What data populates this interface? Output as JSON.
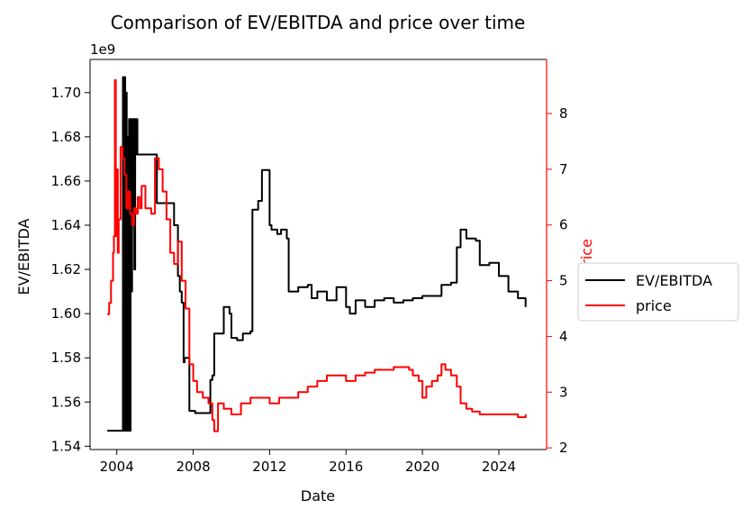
{
  "chart_data": {
    "type": "line",
    "title": "Comparison of EV/EBITDA and price over time",
    "xlabel": "Date",
    "ylabel_left": "EV/EBITDA",
    "ylabel_right": "price",
    "left_axis_offset_label": "1e9",
    "xlim": [
      2002.6,
      2026.5
    ],
    "ylim_left": [
      1.5385,
      1.715
    ],
    "ylim_right": [
      1.97,
      8.97
    ],
    "x_ticks": [
      2004,
      2008,
      2012,
      2016,
      2020,
      2024
    ],
    "x_tick_labels": [
      "2004",
      "2008",
      "2012",
      "2016",
      "2020",
      "2024"
    ],
    "y_left_ticks": [
      1.54,
      1.56,
      1.58,
      1.6,
      1.62,
      1.64,
      1.66,
      1.68,
      1.7
    ],
    "y_left_tick_labels": [
      "1.54",
      "1.56",
      "1.58",
      "1.60",
      "1.62",
      "1.64",
      "1.66",
      "1.68",
      "1.70"
    ],
    "y_right_ticks": [
      2,
      3,
      4,
      5,
      6,
      7,
      8
    ],
    "y_right_tick_labels": [
      "2",
      "3",
      "4",
      "5",
      "6",
      "7",
      "8"
    ],
    "grid": false,
    "legend": {
      "position": "center-right, outside plot",
      "entries": [
        "EV/EBITDA",
        "price"
      ]
    },
    "colors": {
      "ev_ebitda": "#000000",
      "price": "#ff0000",
      "right_axis": "#ff0000"
    },
    "series": [
      {
        "name": "EV/EBITDA",
        "axis": "left",
        "x": [
          2003.5,
          2004.3,
          2004.32,
          2004.36,
          2004.4,
          2004.44,
          2004.48,
          2004.52,
          2004.56,
          2004.6,
          2004.64,
          2004.68,
          2004.72,
          2004.76,
          2004.8,
          2004.84,
          2004.88,
          2004.92,
          2004.96,
          2005.0,
          2005.04,
          2005.08,
          2005.12,
          2005.16,
          2005.2,
          2005.25,
          2005.3,
          2005.6,
          2005.7,
          2006.0,
          2006.1,
          2006.6,
          2006.7,
          2007.0,
          2007.2,
          2007.3,
          2007.4,
          2007.5,
          2007.55,
          2007.8,
          2008.0,
          2008.1,
          2008.8,
          2008.9,
          2009.0,
          2009.1,
          2009.5,
          2009.6,
          2009.9,
          2010.0,
          2010.3,
          2010.6,
          2011.0,
          2011.1,
          2011.4,
          2011.6,
          2011.8,
          2012.0,
          2012.1,
          2012.4,
          2012.6,
          2012.9,
          2013.0,
          2013.1,
          2013.5,
          2014.0,
          2014.2,
          2014.5,
          2015.0,
          2015.5,
          2016.0,
          2016.2,
          2016.5,
          2017.0,
          2017.5,
          2018.0,
          2018.5,
          2019.0,
          2019.5,
          2020.0,
          2020.5,
          2021.0,
          2021.5,
          2021.8,
          2022.0,
          2022.3,
          2022.8,
          2023.0,
          2023.5,
          2024.0,
          2024.5,
          2025.0,
          2025.4
        ],
        "values": [
          1.547,
          1.547,
          1.707,
          1.547,
          1.707,
          1.547,
          1.7,
          1.547,
          1.68,
          1.547,
          1.688,
          1.547,
          1.688,
          1.61,
          1.688,
          1.64,
          1.688,
          1.62,
          1.688,
          1.672,
          1.688,
          1.672,
          1.672,
          1.672,
          1.672,
          1.672,
          1.672,
          1.672,
          1.672,
          1.672,
          1.65,
          1.65,
          1.65,
          1.64,
          1.617,
          1.61,
          1.605,
          1.578,
          1.58,
          1.556,
          1.556,
          1.555,
          1.555,
          1.57,
          1.572,
          1.591,
          1.591,
          1.603,
          1.6,
          1.589,
          1.588,
          1.591,
          1.592,
          1.647,
          1.651,
          1.665,
          1.665,
          1.64,
          1.638,
          1.636,
          1.638,
          1.634,
          1.61,
          1.61,
          1.612,
          1.613,
          1.607,
          1.61,
          1.606,
          1.612,
          1.603,
          1.6,
          1.606,
          1.603,
          1.606,
          1.607,
          1.605,
          1.606,
          1.607,
          1.608,
          1.608,
          1.613,
          1.614,
          1.63,
          1.638,
          1.634,
          1.633,
          1.622,
          1.623,
          1.617,
          1.61,
          1.607,
          1.603
        ]
      },
      {
        "name": "price",
        "axis": "right",
        "x": [
          2003.5,
          2003.6,
          2003.7,
          2003.8,
          2003.85,
          2003.9,
          2003.95,
          2004.0,
          2004.05,
          2004.1,
          2004.2,
          2004.3,
          2004.4,
          2004.5,
          2004.6,
          2004.7,
          2004.8,
          2004.9,
          2005.0,
          2005.1,
          2005.2,
          2005.3,
          2005.5,
          2005.8,
          2006.0,
          2006.2,
          2006.4,
          2006.6,
          2006.8,
          2007.0,
          2007.2,
          2007.4,
          2007.6,
          2007.8,
          2008.0,
          2008.2,
          2008.5,
          2008.8,
          2009.0,
          2009.1,
          2009.3,
          2009.6,
          2010.0,
          2010.5,
          2011.0,
          2011.5,
          2012.0,
          2012.5,
          2013.0,
          2013.5,
          2014.0,
          2014.5,
          2015.0,
          2015.5,
          2016.0,
          2016.5,
          2017.0,
          2017.5,
          2018.0,
          2018.5,
          2019.0,
          2019.3,
          2019.5,
          2019.8,
          2020.0,
          2020.2,
          2020.5,
          2020.8,
          2021.0,
          2021.2,
          2021.5,
          2021.8,
          2022.0,
          2022.3,
          2022.6,
          2023.0,
          2023.5,
          2024.0,
          2024.5,
          2025.0,
          2025.4
        ],
        "values": [
          4.4,
          4.6,
          5.0,
          5.5,
          5.8,
          8.6,
          5.8,
          7.0,
          5.5,
          6.1,
          7.4,
          7.2,
          6.9,
          6.3,
          6.6,
          6.2,
          6.0,
          6.3,
          6.2,
          6.5,
          6.3,
          6.7,
          6.3,
          6.2,
          7.2,
          7.0,
          6.6,
          6.1,
          5.5,
          5.3,
          5.7,
          5.0,
          4.5,
          3.5,
          3.2,
          3.0,
          2.9,
          2.8,
          2.5,
          2.3,
          2.8,
          2.7,
          2.6,
          2.8,
          2.9,
          2.9,
          2.8,
          2.9,
          2.9,
          3.0,
          3.1,
          3.2,
          3.3,
          3.3,
          3.2,
          3.3,
          3.35,
          3.4,
          3.4,
          3.45,
          3.45,
          3.4,
          3.3,
          3.2,
          2.9,
          3.1,
          3.2,
          3.3,
          3.5,
          3.4,
          3.3,
          3.1,
          2.8,
          2.7,
          2.65,
          2.6,
          2.6,
          2.6,
          2.6,
          2.55,
          2.6
        ]
      }
    ]
  }
}
